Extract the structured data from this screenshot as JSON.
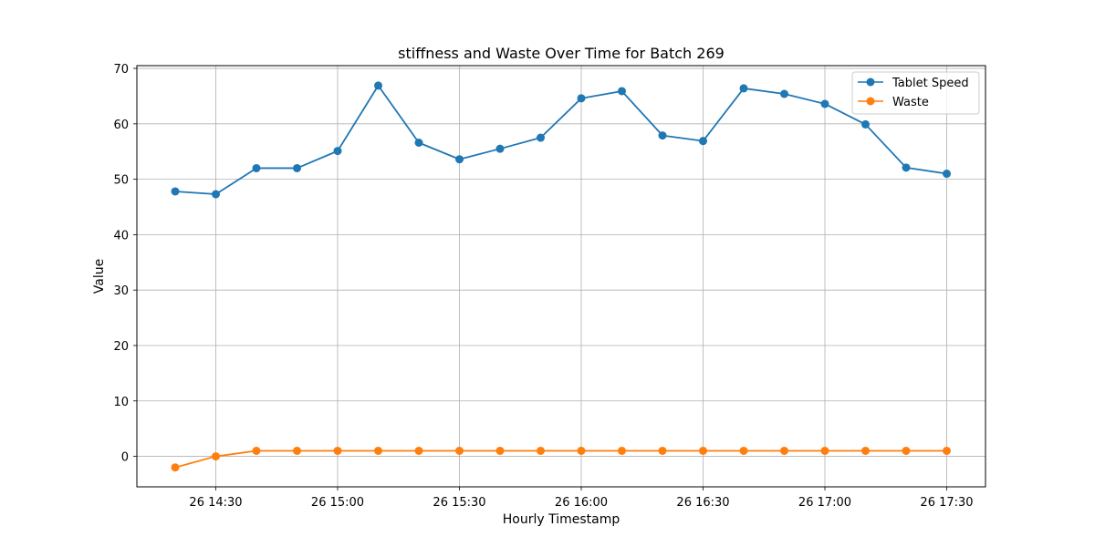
{
  "chart_data": {
    "type": "line",
    "title": "stiffness and Waste Over Time for Batch 269",
    "xlabel": "Hourly Timestamp",
    "ylabel": "Value",
    "x": [
      "14:20",
      "14:30",
      "14:40",
      "14:50",
      "15:00",
      "15:10",
      "15:20",
      "15:30",
      "15:40",
      "15:50",
      "16:00",
      "16:10",
      "16:20",
      "16:30",
      "16:40",
      "16:50",
      "17:00",
      "17:10",
      "17:20",
      "17:30"
    ],
    "x_ticks": [
      "26 14:30",
      "26 15:00",
      "26 15:30",
      "26 16:00",
      "26 16:30",
      "26 17:00",
      "26 17:30"
    ],
    "y_ticks": [
      "0",
      "10",
      "20",
      "30",
      "40",
      "50",
      "60",
      "70"
    ],
    "ylim": [
      -5.5,
      70.5
    ],
    "grid": true,
    "legend_position": "top-right",
    "series": [
      {
        "name": "Tablet Speed",
        "color": "#1f77b4",
        "values": [
          47.8,
          47.3,
          52.0,
          52.0,
          55.1,
          66.9,
          56.6,
          53.6,
          55.5,
          57.5,
          64.6,
          65.9,
          57.9,
          56.9,
          66.4,
          65.4,
          63.6,
          59.9,
          52.1,
          51.0
        ]
      },
      {
        "name": "Waste",
        "color": "#ff7f0e",
        "values": [
          -2.0,
          0.0,
          1.0,
          1.0,
          1.0,
          1.0,
          1.0,
          1.0,
          1.0,
          1.0,
          1.0,
          1.0,
          1.0,
          1.0,
          1.0,
          1.0,
          1.0,
          1.0,
          1.0,
          1.0
        ]
      }
    ]
  }
}
